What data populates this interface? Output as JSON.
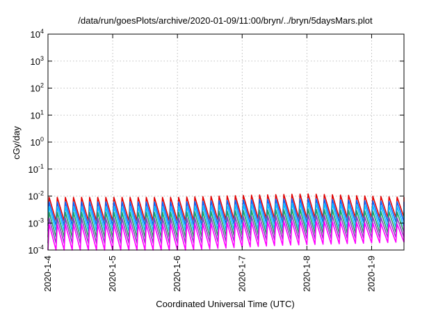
{
  "chart_data": {
    "type": "line",
    "title": "/data/run/goesPlots/archive/2020-01-09/11:00/bryn/../bryn/5daysMars.plot",
    "xlabel": "Coordinated Universal Time (UTC)",
    "ylabel": "cGy/day",
    "y_scale": "log",
    "ylim": [
      0.0001,
      10000
    ],
    "xlim": [
      "2020-01-04T00:00",
      "2020-01-09T12:00"
    ],
    "grid": true,
    "x_tick_labels": [
      "2020-1-4",
      "2020-1-5",
      "2020-1-6",
      "2020-1-7",
      "2020-1-8",
      "2020-1-9"
    ],
    "y_tick_exponents": [
      "-4",
      "-3",
      "-2",
      "-1",
      "0",
      "1",
      "2",
      "3",
      "4"
    ],
    "y_tick_base": "10",
    "series_colors": [
      "#e00000",
      "#0066ff",
      "#00bfff",
      "#20a060",
      "#8a3fc0",
      "#ff00ff"
    ],
    "oscillation": {
      "period_hours": 3.0,
      "description_values": "sawtooth: rises steeply then decays",
      "peaks": [
        {
          "date": "2020-01-04T00:00",
          "values": [
            0.009,
            0.006,
            0.004,
            0.0025,
            0.0015,
            0.0009
          ]
        },
        {
          "date": "2020-01-05T00:00",
          "values": [
            0.009,
            0.006,
            0.004,
            0.0025,
            0.0015,
            0.0009
          ]
        },
        {
          "date": "2020-01-06T00:00",
          "values": [
            0.009,
            0.006,
            0.004,
            0.0025,
            0.0015,
            0.0009
          ]
        },
        {
          "date": "2020-01-07T06:00",
          "values": [
            0.011,
            0.0075,
            0.005,
            0.003,
            0.0018,
            0.0011
          ]
        },
        {
          "date": "2020-01-08T00:00",
          "values": [
            0.012,
            0.008,
            0.0055,
            0.0033,
            0.002,
            0.0012
          ]
        },
        {
          "date": "2020-01-09T12:00",
          "values": [
            0.009,
            0.006,
            0.004,
            0.0025,
            0.0015,
            0.0009
          ]
        }
      ],
      "troughs": [
        {
          "date": "2020-01-04T00:00",
          "values": [
            0.0012,
            0.0008,
            0.0005,
            0.0003,
            0.00018,
            0.0001
          ]
        },
        {
          "date": "2020-01-06T00:00",
          "values": [
            0.0012,
            0.0008,
            0.0005,
            0.0003,
            0.00018,
            0.0001
          ]
        },
        {
          "date": "2020-01-07T12:00",
          "values": [
            0.0015,
            0.001,
            0.0006,
            0.0004,
            0.00025,
            0.00015
          ]
        },
        {
          "date": "2020-01-09T12:00",
          "values": [
            0.0016,
            0.0011,
            0.0007,
            0.00045,
            0.0003,
            0.0002
          ]
        }
      ]
    }
  }
}
